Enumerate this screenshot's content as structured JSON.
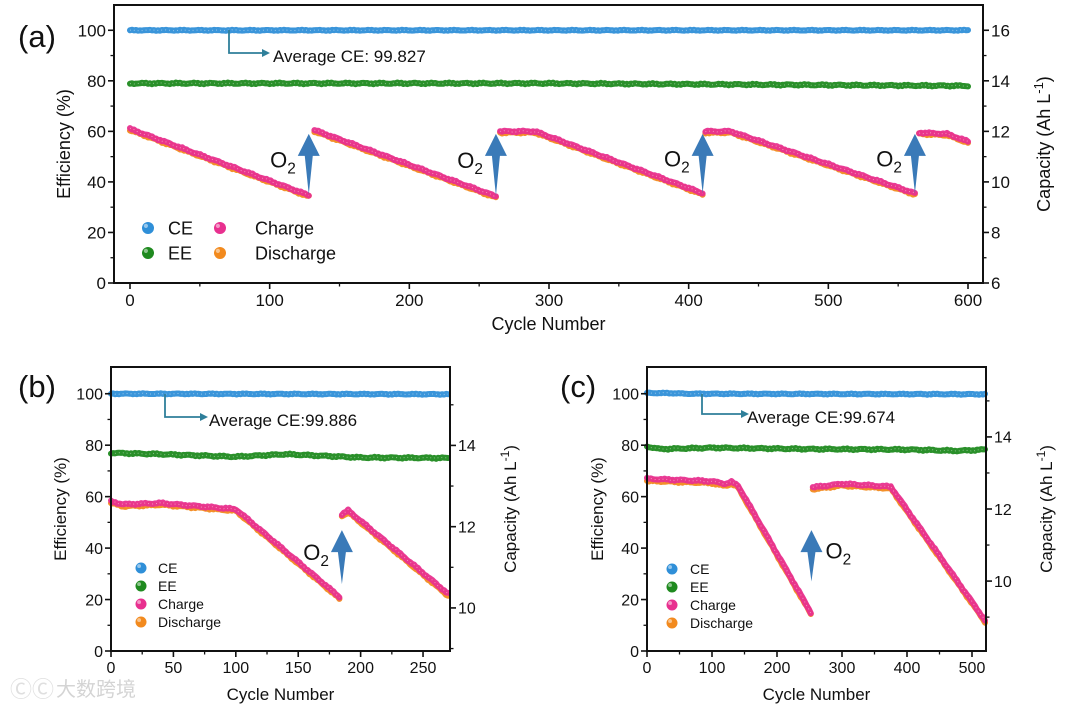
{
  "chart_data": [
    {
      "id": "a",
      "type": "scatter",
      "label": "(a)",
      "xlabel": "Cycle Number",
      "ylabel": "Efficiency (%)",
      "y2label": {
        "main": "Capacity (Ah L",
        "sup": "-1",
        "end": ")"
      },
      "xlim": [
        0,
        600
      ],
      "ylim": [
        0,
        110
      ],
      "y2lim": [
        6,
        17
      ],
      "xticks": [
        0,
        100,
        200,
        300,
        400,
        500,
        600
      ],
      "yticks": [
        0,
        20,
        40,
        60,
        80,
        100
      ],
      "y2ticks": [
        6,
        8,
        10,
        12,
        14,
        16
      ],
      "annotation": "Average CE: 99.827",
      "o2_label": "O",
      "o2_sub": "2",
      "legend": [
        "CE",
        "EE",
        "Charge",
        "Discharge"
      ],
      "legend_layout": "two-column bottom-left",
      "series": [
        {
          "name": "CE",
          "axis": "left",
          "color": "#2f8fd8",
          "segments": [
            [
              [
                0,
                100
              ],
              [
                600,
                100
              ]
            ]
          ]
        },
        {
          "name": "EE",
          "axis": "left",
          "color": "#1f8a1f",
          "segments": [
            [
              [
                0,
                79
              ],
              [
                300,
                79
              ],
              [
                600,
                78
              ]
            ]
          ]
        },
        {
          "name": "Discharge",
          "axis": "right",
          "color": "#f28a1e",
          "segments": [
            [
              [
                0,
                12.05
              ],
              [
                128,
                9.42
              ]
            ],
            [
              [
                132,
                12.0
              ],
              [
                262,
                9.38
              ]
            ],
            [
              [
                265,
                11.95
              ],
              [
                290,
                11.95
              ],
              [
                410,
                9.5
              ]
            ],
            [
              [
                412,
                11.95
              ],
              [
                430,
                11.95
              ],
              [
                562,
                9.5
              ]
            ],
            [
              [
                565,
                11.9
              ],
              [
                585,
                11.85
              ],
              [
                600,
                11.55
              ]
            ]
          ]
        },
        {
          "name": "Charge",
          "axis": "right",
          "color": "#e8308f",
          "segments": [
            [
              [
                0,
                12.1
              ],
              [
                128,
                9.47
              ]
            ],
            [
              [
                132,
                12.05
              ],
              [
                262,
                9.43
              ]
            ],
            [
              [
                265,
                12.0
              ],
              [
                290,
                12.0
              ],
              [
                410,
                9.55
              ]
            ],
            [
              [
                412,
                12.0
              ],
              [
                430,
                12.0
              ],
              [
                562,
                9.55
              ]
            ],
            [
              [
                565,
                11.95
              ],
              [
                585,
                11.9
              ],
              [
                600,
                11.6
              ]
            ]
          ]
        }
      ],
      "o2_arrows": [
        {
          "cycle": 128,
          "axis": "right",
          "from": 9.5,
          "to": 11.9,
          "label_side": "left"
        },
        {
          "cycle": 262,
          "axis": "right",
          "from": 9.45,
          "to": 11.9,
          "label_side": "left"
        },
        {
          "cycle": 410,
          "axis": "right",
          "from": 9.55,
          "to": 11.9,
          "label_side": "left"
        },
        {
          "cycle": 562,
          "axis": "right",
          "from": 9.55,
          "to": 11.9,
          "label_side": "left"
        }
      ]
    },
    {
      "id": "b",
      "type": "scatter",
      "label": "(b)",
      "xlabel": "Cycle Number",
      "ylabel": "Efficiency (%)",
      "y2label": {
        "main": "Capacity (Ah L",
        "sup": "-1",
        "end": ")"
      },
      "xlim": [
        0,
        270
      ],
      "ylim": [
        0,
        110
      ],
      "y2lim": [
        8.94,
        15.93
      ],
      "xticks": [
        0,
        50,
        100,
        150,
        200,
        250
      ],
      "yticks": [
        0,
        20,
        40,
        60,
        80,
        100
      ],
      "y2ticks": [
        10,
        12,
        14
      ],
      "annotation": "Average CE:99.886",
      "o2_label": "O",
      "o2_sub": "2",
      "legend": [
        "CE",
        "EE",
        "Charge",
        "Discharge"
      ],
      "legend_layout": "single-column bottom-left",
      "series": [
        {
          "name": "CE",
          "axis": "left",
          "color": "#2f8fd8",
          "segments": [
            [
              [
                0,
                100
              ],
              [
                270,
                99.8
              ]
            ]
          ]
        },
        {
          "name": "EE",
          "axis": "left",
          "color": "#1f8a1f",
          "segments": [
            [
              [
                0,
                77
              ],
              [
                40,
                76.5
              ],
              [
                100,
                75.5
              ],
              [
                140,
                76.5
              ],
              [
                200,
                75.2
              ],
              [
                270,
                75
              ]
            ]
          ]
        },
        {
          "name": "Discharge",
          "axis": "right",
          "color": "#f28a1e",
          "segments": [
            [
              [
                0,
                12.58
              ],
              [
                10,
                12.5
              ],
              [
                40,
                12.54
              ],
              [
                100,
                12.39
              ],
              [
                183,
                10.23
              ]
            ],
            [
              [
                185,
                12.26
              ],
              [
                190,
                12.36
              ],
              [
                270,
                10.3
              ]
            ]
          ]
        },
        {
          "name": "Charge",
          "axis": "right",
          "color": "#e8308f",
          "segments": [
            [
              [
                0,
                12.62
              ],
              [
                10,
                12.55
              ],
              [
                40,
                12.58
              ],
              [
                100,
                12.43
              ],
              [
                183,
                10.27
              ]
            ],
            [
              [
                185,
                12.3
              ],
              [
                190,
                12.4
              ],
              [
                270,
                10.35
              ]
            ]
          ]
        }
      ],
      "o2_arrows": [
        {
          "cycle": 185,
          "axis": "left",
          "from": 26,
          "to": 47,
          "label_side": "left"
        }
      ]
    },
    {
      "id": "c",
      "type": "scatter",
      "label": "(c)",
      "xlabel": "Cycle Number",
      "ylabel": "Efficiency (%)",
      "y2label": {
        "main": "Capacity (Ah L",
        "sup": "-1",
        "end": ")"
      },
      "xlim": [
        0,
        520
      ],
      "ylim": [
        0,
        110
      ],
      "y2lim": [
        8.06,
        15.94
      ],
      "xticks": [
        0,
        100,
        200,
        300,
        400,
        500
      ],
      "yticks": [
        0,
        20,
        40,
        60,
        80,
        100
      ],
      "y2ticks": [
        10,
        12,
        14
      ],
      "annotation": "Average CE:99.674",
      "o2_label": "O",
      "o2_sub": "2",
      "legend": [
        "CE",
        "EE",
        "Charge",
        "Discharge"
      ],
      "legend_layout": "single-column bottom-left",
      "series": [
        {
          "name": "CE",
          "axis": "left",
          "color": "#2f8fd8",
          "segments": [
            [
              [
                0,
                100.3
              ],
              [
                40,
                100.2
              ],
              [
                60,
                100
              ],
              [
                520,
                99.8
              ]
            ]
          ]
        },
        {
          "name": "EE",
          "axis": "left",
          "color": "#1f8a1f",
          "segments": [
            [
              [
                0,
                79.5
              ],
              [
                20,
                78.5
              ],
              [
                100,
                79
              ],
              [
                250,
                78.5
              ],
              [
                400,
                78.3
              ],
              [
                480,
                77.8
              ],
              [
                520,
                78.3
              ]
            ]
          ]
        },
        {
          "name": "Discharge",
          "axis": "right",
          "color": "#f28a1e",
          "segments": [
            [
              [
                0,
                12.78
              ],
              [
                100,
                12.72
              ],
              [
                120,
                12.64
              ],
              [
                130,
                12.7
              ],
              [
                140,
                12.6
              ],
              [
                252,
                9.09
              ]
            ],
            [
              [
                255,
                12.55
              ],
              [
                300,
                12.65
              ],
              [
                375,
                12.57
              ],
              [
                520,
                8.87
              ]
            ]
          ]
        },
        {
          "name": "Charge",
          "axis": "right",
          "color": "#e8308f",
          "segments": [
            [
              [
                0,
                12.84
              ],
              [
                100,
                12.77
              ],
              [
                120,
                12.7
              ],
              [
                130,
                12.75
              ],
              [
                140,
                12.65
              ],
              [
                252,
                9.13
              ]
            ],
            [
              [
                255,
                12.6
              ],
              [
                300,
                12.7
              ],
              [
                375,
                12.62
              ],
              [
                520,
                8.91
              ]
            ]
          ]
        }
      ],
      "o2_arrows": [
        {
          "cycle": 253,
          "axis": "left",
          "from": 27,
          "to": 47,
          "label_side": "right"
        }
      ]
    }
  ],
  "watermark": "大数跨境"
}
